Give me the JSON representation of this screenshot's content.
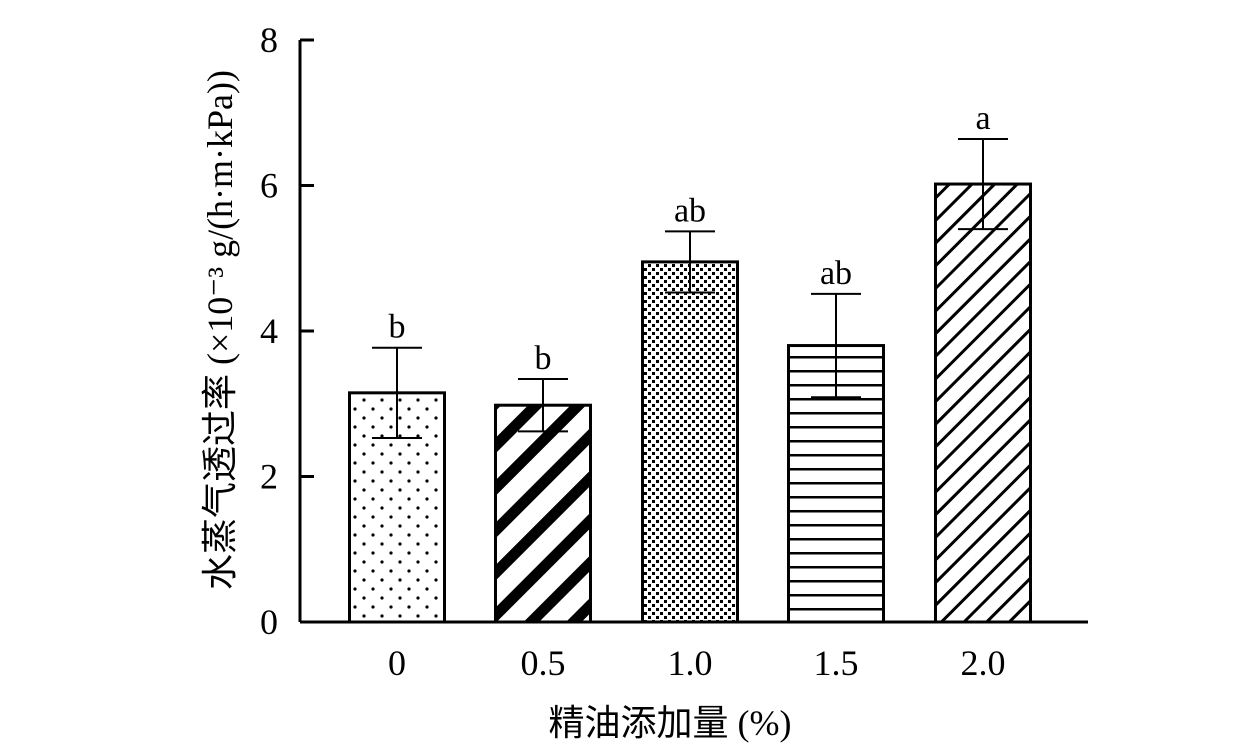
{
  "chart_data": {
    "type": "bar",
    "categories": [
      "0",
      "0.5",
      "1.0",
      "1.5",
      "2.0"
    ],
    "values": [
      3.15,
      2.98,
      4.95,
      3.8,
      6.02
    ],
    "errors": [
      0.62,
      0.36,
      0.42,
      0.71,
      0.62
    ],
    "significance_labels": [
      "b",
      "b",
      "ab",
      "ab",
      "a"
    ],
    "fill_patterns": [
      "dots",
      "thick-diagonal-stripes",
      "dense-dots",
      "horizontal-lines",
      "diagonal-hatch"
    ],
    "xlabel": "精油添加量 (%)",
    "ylabel": "水蒸气透过率 (×10⁻³ g/(h·m·kPa))",
    "ylim": [
      0,
      8
    ],
    "yticks": [
      "0",
      "2",
      "4",
      "6",
      "8"
    ],
    "grid": false,
    "legend": "none",
    "bar_color": "#ffffff",
    "line_color": "#000000"
  }
}
